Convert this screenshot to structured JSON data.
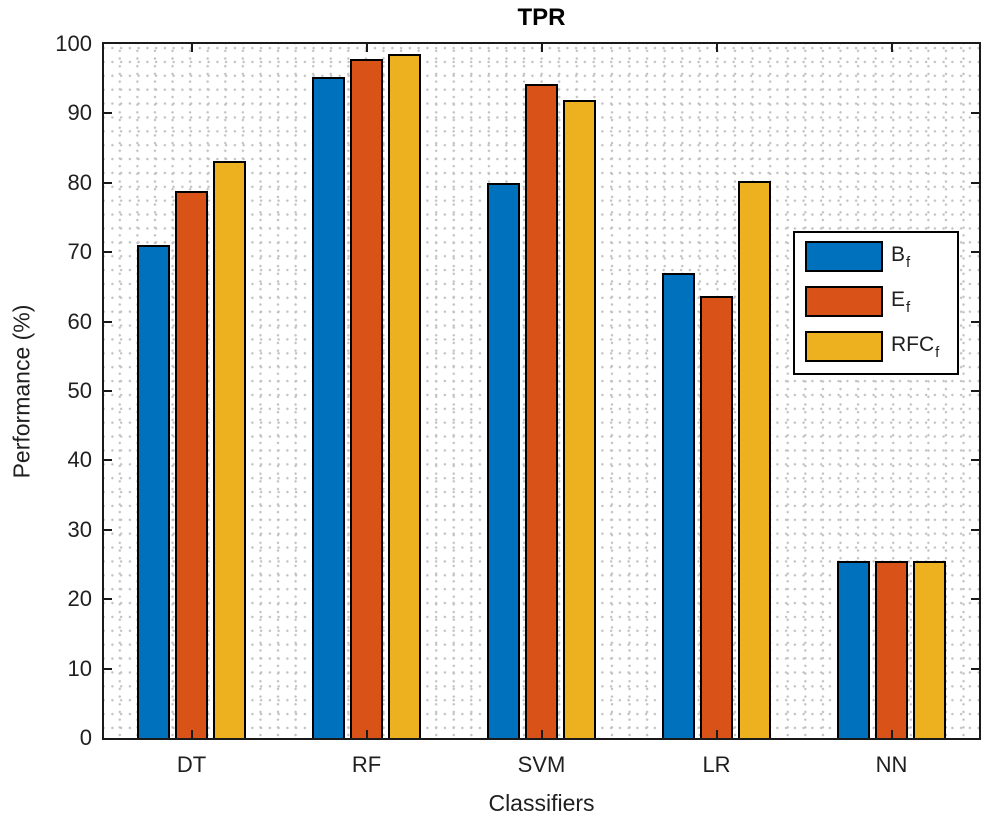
{
  "chart_data": {
    "type": "bar",
    "title": "TPR",
    "xlabel": "Classifiers",
    "ylabel": "Performance (%)",
    "ylim": [
      0,
      100
    ],
    "yticks": [
      0,
      10,
      20,
      30,
      40,
      50,
      60,
      70,
      80,
      90,
      100
    ],
    "grid": "dotted-minor",
    "legend_position": "right-inside",
    "categories": [
      "DT",
      "RF",
      "SVM",
      "LR",
      "NN"
    ],
    "series": [
      {
        "name": "B_f",
        "label_main": "B",
        "label_sub": "f",
        "color": "#0072BD",
        "values": [
          71.0,
          95.2,
          80.0,
          67.0,
          25.5
        ]
      },
      {
        "name": "E_f",
        "label_main": "E",
        "label_sub": "f",
        "color": "#D95319",
        "values": [
          78.8,
          97.8,
          94.3,
          63.7,
          25.5
        ]
      },
      {
        "name": "RFC_f",
        "label_main": "RFC",
        "label_sub": "f",
        "color": "#EDB120",
        "values": [
          83.2,
          98.5,
          92.0,
          80.3,
          25.5
        ]
      }
    ]
  }
}
